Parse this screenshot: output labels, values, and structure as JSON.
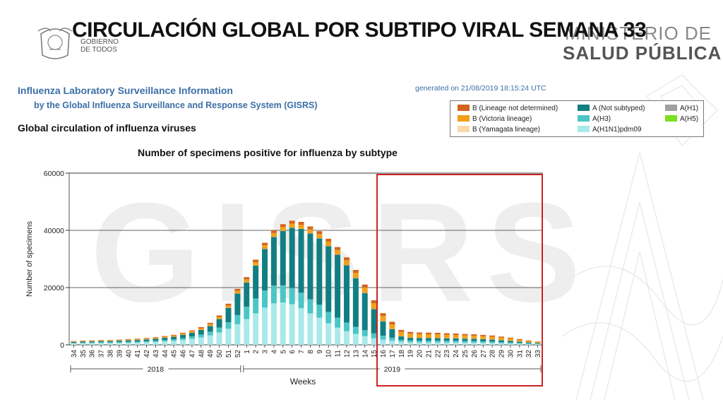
{
  "slide_title": "CIRCULACIÓN GLOBAL  POR SUBTIPO VIRAL SEMANA 33",
  "government_logo": {
    "line1": "GOBIERNO",
    "line2": "DE TODOS"
  },
  "ministry_logo": {
    "line1": "MINISTERIO DE",
    "line2": "SALUD PÚBLICA"
  },
  "report": {
    "title": "Influenza Laboratory Surveillance Information",
    "subtitle": "by the Global Influenza Surveillance and Response System (GISRS)",
    "generated": "generated on 21/08/2019 18:15:24 UTC",
    "section_title": "Global circulation of influenza viruses",
    "watermark": "GISRS"
  },
  "colors": {
    "b_lineage_not_determined": "#d2651e",
    "b_victoria": "#f2a01a",
    "b_yamagata": "#f8d9a8",
    "a_not_subtyped": "#137e82",
    "a_h3": "#4bc6c6",
    "a_h1n1pdm09": "#a9e9ea",
    "a_h1": "#a0a0a0",
    "a_h5": "#7ce020",
    "highlight_box": "#cc2222"
  },
  "legend": [
    {
      "label": "B (Lineage not determined)",
      "color": "#d2651e"
    },
    {
      "label": "B (Victoria lineage)",
      "color": "#f2a01a"
    },
    {
      "label": "B (Yamagata lineage)",
      "color": "#f8d9a8"
    },
    {
      "label": "A (Not subtyped)",
      "color": "#137e82"
    },
    {
      "label": "A(H3)",
      "color": "#4bc6c6"
    },
    {
      "label": "A(H1N1)pdm09",
      "color": "#a9e9ea"
    },
    {
      "label": "A(H1)",
      "color": "#a0a0a0"
    },
    {
      "label": "A(H5)",
      "color": "#7ce020"
    }
  ],
  "chart_data": {
    "type": "bar",
    "stacked": true,
    "title": "Number of specimens positive for influenza by subtype",
    "xlabel": "Weeks",
    "ylabel": "Number of specimens",
    "ylim": [
      0,
      60000
    ],
    "yticks": [
      0,
      20000,
      40000,
      60000
    ],
    "grid": true,
    "legend_position": "top-right",
    "categories": [
      "34",
      "35",
      "36",
      "37",
      "38",
      "39",
      "40",
      "41",
      "42",
      "43",
      "44",
      "45",
      "46",
      "47",
      "48",
      "49",
      "50",
      "51",
      "52",
      "1",
      "2",
      "3",
      "4",
      "5",
      "6",
      "7",
      "8",
      "9",
      "10",
      "11",
      "12",
      "13",
      "14",
      "15",
      "16",
      "17",
      "18",
      "19",
      "20",
      "21",
      "22",
      "23",
      "24",
      "25",
      "26",
      "27",
      "28",
      "29",
      "30",
      "31",
      "32",
      "33"
    ],
    "year_groups": [
      {
        "label": "2018",
        "from": "34",
        "to": "52"
      },
      {
        "label": "2019",
        "from": "1",
        "to": "33"
      }
    ],
    "highlight_range": {
      "from": "16",
      "to": "33"
    },
    "series": [
      {
        "name": "A(H1N1)pdm09",
        "values": [
          500,
          550,
          600,
          650,
          650,
          700,
          750,
          800,
          900,
          1000,
          1200,
          1400,
          1700,
          2100,
          2600,
          3300,
          4300,
          5600,
          7200,
          9000,
          11000,
          13000,
          14500,
          14800,
          14200,
          12800,
          11000,
          9500,
          7500,
          6000,
          4800,
          3800,
          3000,
          2300,
          1800,
          1400,
          1050,
          900,
          850,
          850,
          850,
          800,
          800,
          750,
          750,
          700,
          650,
          550,
          500,
          400,
          300,
          250
        ]
      },
      {
        "name": "A(H3)",
        "values": [
          200,
          220,
          250,
          250,
          250,
          270,
          300,
          320,
          360,
          400,
          450,
          520,
          650,
          800,
          1000,
          1300,
          1700,
          2300,
          3200,
          4300,
          5200,
          6000,
          6200,
          6000,
          5700,
          5400,
          4900,
          4500,
          4000,
          3500,
          3000,
          2500,
          2100,
          1700,
          1400,
          1100,
          700,
          650,
          650,
          650,
          650,
          630,
          600,
          580,
          560,
          520,
          480,
          420,
          350,
          280,
          220,
          160
        ]
      },
      {
        "name": "A (Not subtyped)",
        "values": [
          300,
          350,
          350,
          400,
          400,
          450,
          500,
          550,
          600,
          700,
          800,
          900,
          1100,
          1300,
          1600,
          2000,
          3000,
          5000,
          7500,
          8500,
          11500,
          14500,
          17000,
          19000,
          21000,
          22300,
          23000,
          23200,
          23000,
          22000,
          20000,
          17000,
          13000,
          8500,
          5000,
          3000,
          1200,
          900,
          850,
          850,
          850,
          830,
          820,
          800,
          780,
          750,
          700,
          620,
          520,
          420,
          330,
          250
        ]
      },
      {
        "name": "A(H1)",
        "values": [
          0,
          0,
          0,
          0,
          0,
          0,
          0,
          0,
          0,
          0,
          0,
          0,
          0,
          0,
          0,
          0,
          0,
          0,
          0,
          0,
          0,
          0,
          0,
          0,
          0,
          0,
          0,
          0,
          0,
          0,
          0,
          0,
          0,
          0,
          0,
          0,
          0,
          0,
          0,
          0,
          0,
          0,
          0,
          0,
          0,
          0,
          0,
          0,
          0,
          0,
          0,
          0
        ]
      },
      {
        "name": "A(H5)",
        "values": [
          0,
          0,
          0,
          0,
          0,
          0,
          0,
          0,
          0,
          0,
          0,
          0,
          0,
          0,
          0,
          0,
          0,
          0,
          0,
          0,
          0,
          0,
          0,
          0,
          0,
          0,
          0,
          0,
          0,
          0,
          0,
          0,
          0,
          0,
          0,
          0,
          0,
          0,
          0,
          0,
          0,
          0,
          0,
          0,
          0,
          0,
          0,
          0,
          0,
          0,
          0,
          0
        ]
      },
      {
        "name": "B (Yamagata lineage)",
        "values": [
          20,
          20,
          20,
          20,
          20,
          20,
          20,
          20,
          20,
          20,
          30,
          30,
          30,
          30,
          30,
          40,
          40,
          50,
          60,
          60,
          60,
          60,
          60,
          60,
          60,
          60,
          60,
          60,
          60,
          60,
          60,
          60,
          60,
          60,
          60,
          60,
          60,
          60,
          60,
          60,
          60,
          60,
          60,
          60,
          60,
          60,
          60,
          60,
          50,
          50,
          40,
          30
        ]
      },
      {
        "name": "B (Victoria lineage)",
        "values": [
          200,
          220,
          220,
          240,
          240,
          250,
          270,
          280,
          300,
          330,
          360,
          400,
          450,
          500,
          560,
          620,
          700,
          800,
          900,
          1000,
          1100,
          1200,
          1300,
          1300,
          1400,
          1400,
          1400,
          1450,
          1500,
          1600,
          1700,
          1800,
          1900,
          2000,
          1800,
          1600,
          1500,
          1400,
          1350,
          1300,
          1250,
          1200,
          1150,
          1100,
          1050,
          1000,
          950,
          850,
          750,
          600,
          450,
          300
        ]
      },
      {
        "name": "B (Lineage not determined)",
        "values": [
          100,
          120,
          120,
          130,
          130,
          140,
          160,
          170,
          180,
          200,
          220,
          250,
          280,
          320,
          380,
          440,
          520,
          620,
          700,
          800,
          900,
          900,
          950,
          1000,
          1000,
          1000,
          1000,
          1000,
          1000,
          1000,
          1000,
          1000,
          1000,
          1000,
          1000,
          900,
          700,
          600,
          550,
          550,
          550,
          540,
          520,
          500,
          480,
          450,
          420,
          380,
          330,
          280,
          220,
          150
        ]
      }
    ]
  }
}
